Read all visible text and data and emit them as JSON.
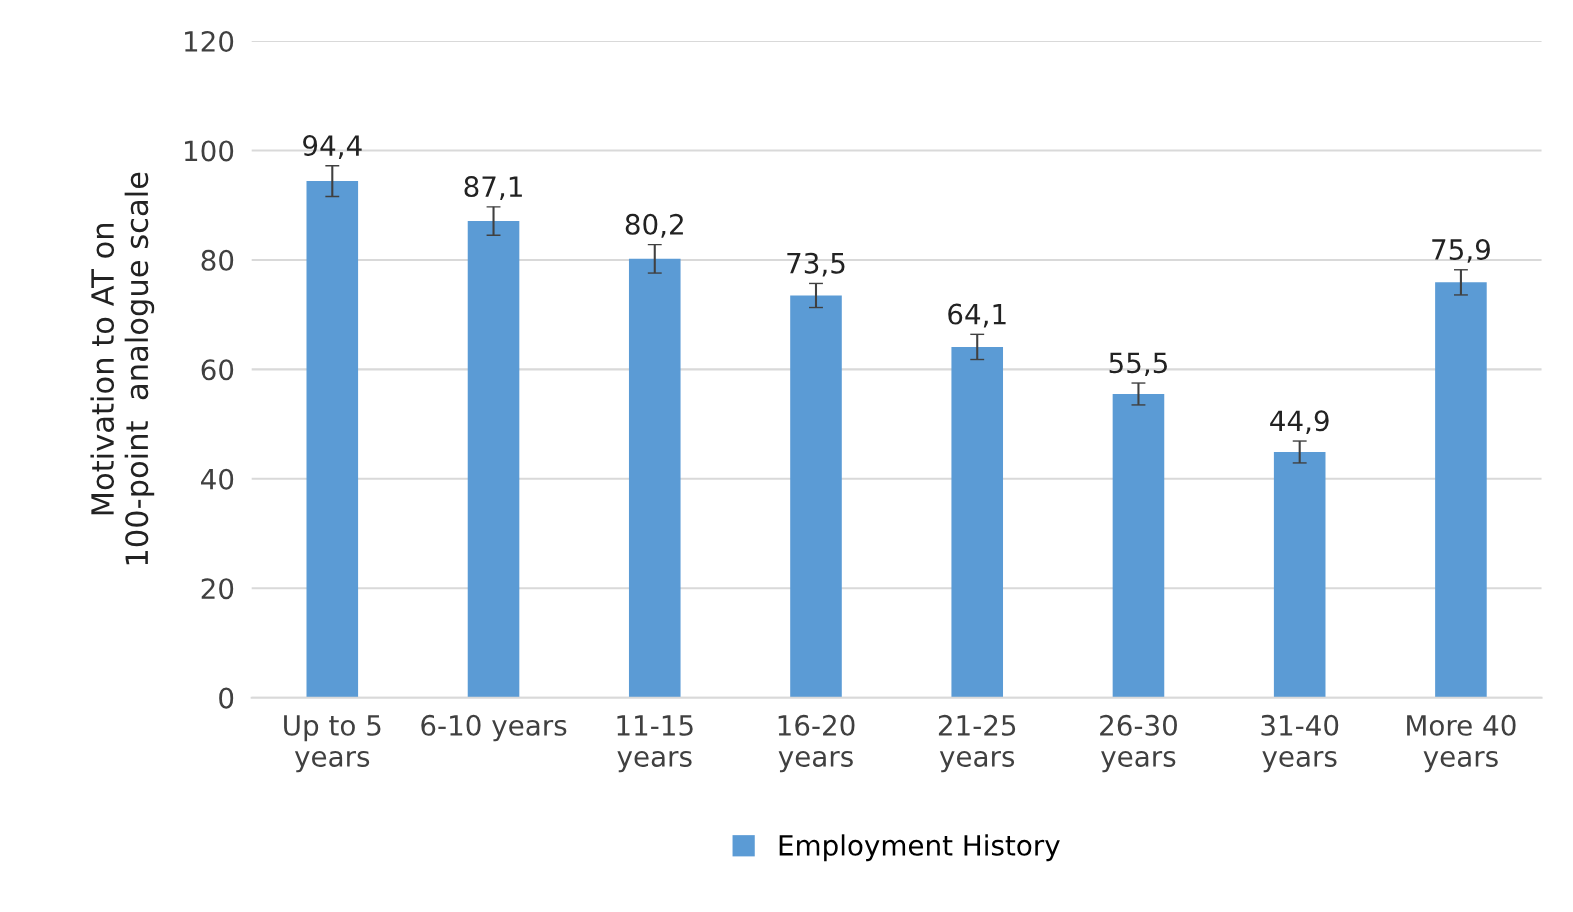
{
  "chart_data": {
    "type": "bar",
    "ylabel": "Motivation to AT on\n100-point  analogue scale",
    "categories": [
      "Up to 5\nyears",
      "6-10 years",
      "11-15\nyears",
      "16-20\nyears",
      "21-25\nyears",
      "26-30\nyears",
      "31-40\nyears",
      "More 40\nyears"
    ],
    "series": [
      {
        "name": "Employment History",
        "color": "#5b9bd5",
        "values": [
          94.4,
          87.1,
          80.2,
          73.5,
          64.1,
          55.5,
          44.9,
          75.9
        ],
        "errors": [
          2.8,
          2.6,
          2.6,
          2.2,
          2.3,
          2.0,
          2.0,
          2.3
        ],
        "value_labels": [
          "94,4",
          "87,1",
          "80,2",
          "73,5",
          "64,1",
          "55,5",
          "44,9",
          "75,9"
        ]
      }
    ],
    "ylim": [
      0,
      120
    ],
    "yticks": [
      0,
      20,
      40,
      60,
      80,
      100,
      120
    ],
    "grid": "y",
    "legend": "bottom"
  }
}
